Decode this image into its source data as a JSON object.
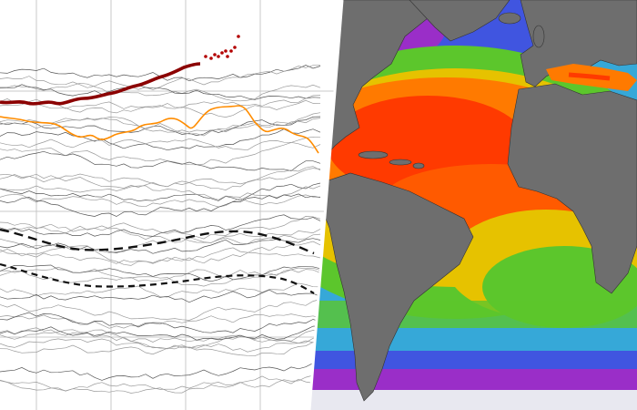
{
  "left_panel": {
    "type": "line",
    "description_visible_text": "",
    "series": [
      {
        "role": "highlight-current",
        "color": "#8b0000",
        "style": "thick solid, ends in dotted markers"
      },
      {
        "role": "highlight-previous",
        "color": "#ff8c00",
        "style": "solid"
      },
      {
        "role": "mean-upper",
        "color": "#111111",
        "style": "dashed"
      },
      {
        "role": "mean-lower",
        "color": "#111111",
        "style": "dashed"
      },
      {
        "role": "historical-years",
        "color": "#9a9a9a",
        "style": "thin solid"
      }
    ],
    "grid": true,
    "axis_labels_visible": false
  },
  "right_panel": {
    "type": "sea-surface-temperature map",
    "region": "Atlantic Ocean",
    "colors": {
      "land": "#6e6e6e",
      "warm_peak": "#ff3a00",
      "warm": "#ff7a00",
      "mild": "#e6c200",
      "temperate": "#5cc62c",
      "cool": "#36a8d8",
      "cold": "#4055e0",
      "very_cold": "#9a2ec8",
      "ice": "#e8e8f0"
    }
  }
}
